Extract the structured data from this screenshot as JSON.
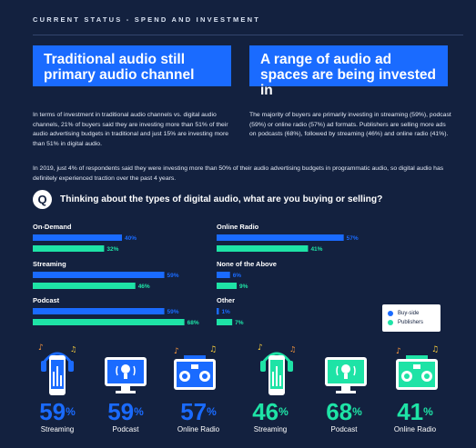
{
  "section_label": "CURRENT STATUS - SPEND AND INVESTMENT",
  "headlines": {
    "left": "Traditional audio still primary audio channel",
    "right": "A range of audio ad spaces are being invested in"
  },
  "paragraphs": {
    "left": "In terms of investment in traditional audio channels vs. digital audio channels, 21% of buyers said they are investing more than 51% of their audio advertising budgets in traditional and just 15% are investing more than 51% in digital audio.",
    "right": "The majority of buyers are primarily investing in streaming (59%), podcast (59%) or online radio (57%) ad formats. Publishers are selling more ads on podcasts (68%), followed by streaming (46%) and online radio (41%).",
    "note": "In 2019, just 4% of respondents said they were investing more than 50% of their audio advertising budgets in programmatic audio, so digital audio has definitely experienced traction over the past 4 years."
  },
  "question": {
    "badge": "Q",
    "text": "Thinking about the types of digital audio, what are you buying or selling?"
  },
  "colors": {
    "buy_side": "#1a6bff",
    "publishers": "#1ee3a6",
    "background": "#13213f"
  },
  "chart_data": {
    "type": "bar",
    "orientation": "horizontal",
    "categories": [
      "On-Demand",
      "Streaming",
      "Podcast",
      "Online Radio",
      "None of the Above",
      "Other"
    ],
    "series": [
      {
        "name": "Buy-side",
        "values": [
          40,
          59,
          59,
          57,
          6,
          1
        ]
      },
      {
        "name": "Publishers",
        "values": [
          32,
          46,
          68,
          41,
          9,
          7
        ]
      }
    ],
    "value_suffix": "%",
    "xlim": [
      0,
      100
    ],
    "legend_position": "bottom-right"
  },
  "legend": {
    "buy_side": "Buy-side",
    "publishers": "Publishers"
  },
  "stats": [
    {
      "value": "59",
      "label": "Streaming",
      "group": "buy",
      "icon": "phone-headphones-icon"
    },
    {
      "value": "59",
      "label": "Podcast",
      "group": "buy",
      "icon": "monitor-podcast-icon"
    },
    {
      "value": "57",
      "label": "Online Radio",
      "group": "buy",
      "icon": "radio-boombox-icon"
    },
    {
      "value": "46",
      "label": "Streaming",
      "group": "pub",
      "icon": "phone-headphones-icon"
    },
    {
      "value": "68",
      "label": "Podcast",
      "group": "pub",
      "icon": "monitor-podcast-icon"
    },
    {
      "value": "41",
      "label": "Online Radio",
      "group": "pub",
      "icon": "radio-boombox-icon"
    }
  ],
  "percent_sign": "%"
}
